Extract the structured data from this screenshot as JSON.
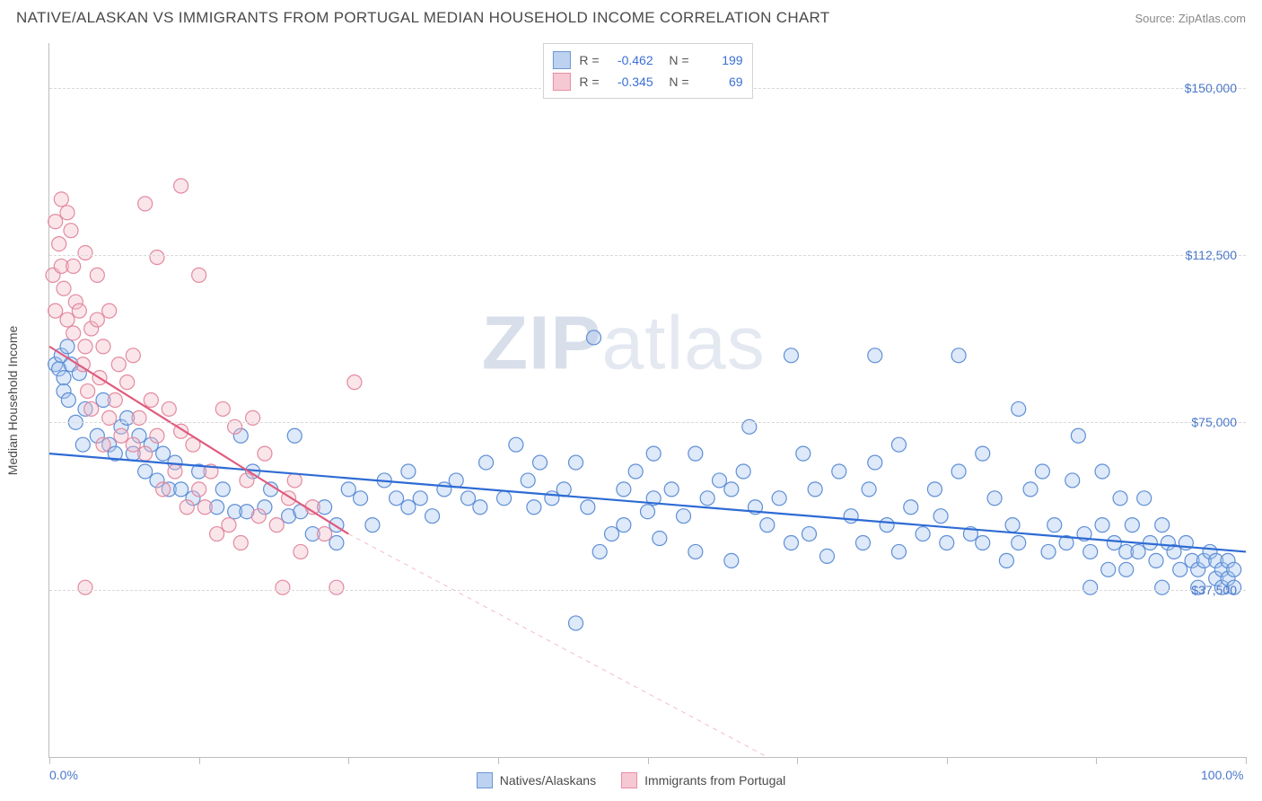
{
  "title": "NATIVE/ALASKAN VS IMMIGRANTS FROM PORTUGAL MEDIAN HOUSEHOLD INCOME CORRELATION CHART",
  "source_label": "Source: ZipAtlas.com",
  "watermark": {
    "bold": "ZIP",
    "light": "atlas"
  },
  "y_axis_label": "Median Household Income",
  "chart": {
    "type": "scatter-with-trendlines",
    "background_color": "#ffffff",
    "grid_color": "#d8d8d8",
    "axis_color": "#bdbdbd",
    "tick_label_color": "#4a78c9",
    "xlim": [
      0,
      100
    ],
    "ylim": [
      0,
      160000
    ],
    "x_ticks": [
      0,
      12.5,
      25,
      37.5,
      50,
      62.5,
      75,
      87.5,
      100
    ],
    "x_tick_labels_shown": {
      "0": "0.0%",
      "100": "100.0%"
    },
    "y_gridlines": [
      37500,
      75000,
      112500,
      150000
    ],
    "y_tick_labels": {
      "37500": "$37,500",
      "75000": "$75,000",
      "112500": "$112,500",
      "150000": "$150,000"
    },
    "point_radius": 8,
    "point_stroke_width": 1.2,
    "point_fill_opacity": 0.38
  },
  "series": [
    {
      "key": "natives",
      "label": "Natives/Alaskans",
      "fill": "#a9c6ee",
      "stroke": "#5e8fd6",
      "swatch_fill": "#bcd2f0",
      "swatch_border": "#6b97d6",
      "R": "-0.462",
      "N": "199",
      "trend": {
        "x1": 0,
        "y1": 68000,
        "x2": 100,
        "y2": 46000,
        "color": "#2e6bd4",
        "width": 2.2,
        "dash": ""
      },
      "points": [
        [
          0.5,
          88000
        ],
        [
          0.8,
          87000
        ],
        [
          1.0,
          90000
        ],
        [
          1.2,
          85000
        ],
        [
          1.2,
          82000
        ],
        [
          1.5,
          92000
        ],
        [
          1.6,
          80000
        ],
        [
          1.8,
          88000
        ],
        [
          2.2,
          75000
        ],
        [
          2.5,
          86000
        ],
        [
          2.8,
          70000
        ],
        [
          3.0,
          78000
        ],
        [
          4.0,
          72000
        ],
        [
          4.5,
          80000
        ],
        [
          5.0,
          70000
        ],
        [
          5.5,
          68000
        ],
        [
          6.0,
          74000
        ],
        [
          6.5,
          76000
        ],
        [
          7.0,
          68000
        ],
        [
          7.5,
          72000
        ],
        [
          8.0,
          64000
        ],
        [
          8.5,
          70000
        ],
        [
          9.0,
          62000
        ],
        [
          9.5,
          68000
        ],
        [
          10.0,
          60000
        ],
        [
          10.5,
          66000
        ],
        [
          11.0,
          60000
        ],
        [
          12.0,
          58000
        ],
        [
          12.5,
          64000
        ],
        [
          14.0,
          56000
        ],
        [
          14.5,
          60000
        ],
        [
          15.5,
          55000
        ],
        [
          16.0,
          72000
        ],
        [
          16.5,
          55000
        ],
        [
          17.0,
          64000
        ],
        [
          18.0,
          56000
        ],
        [
          18.5,
          60000
        ],
        [
          20.0,
          54000
        ],
        [
          20.5,
          72000
        ],
        [
          21.0,
          55000
        ],
        [
          22.0,
          50000
        ],
        [
          23.0,
          56000
        ],
        [
          24.0,
          52000
        ],
        [
          24.0,
          48000
        ],
        [
          25.0,
          60000
        ],
        [
          26.0,
          58000
        ],
        [
          27.0,
          52000
        ],
        [
          28.0,
          62000
        ],
        [
          29.0,
          58000
        ],
        [
          30.0,
          56000
        ],
        [
          30.0,
          64000
        ],
        [
          31.0,
          58000
        ],
        [
          32.0,
          54000
        ],
        [
          33.0,
          60000
        ],
        [
          34.0,
          62000
        ],
        [
          35.0,
          58000
        ],
        [
          36.0,
          56000
        ],
        [
          36.5,
          66000
        ],
        [
          38.0,
          58000
        ],
        [
          39.0,
          70000
        ],
        [
          40.0,
          62000
        ],
        [
          40.5,
          56000
        ],
        [
          41.0,
          66000
        ],
        [
          42.0,
          58000
        ],
        [
          43.0,
          60000
        ],
        [
          44.0,
          30000
        ],
        [
          44.0,
          66000
        ],
        [
          45.0,
          56000
        ],
        [
          45.5,
          94000
        ],
        [
          46.0,
          46000
        ],
        [
          47.0,
          50000
        ],
        [
          48.0,
          52000
        ],
        [
          48.0,
          60000
        ],
        [
          49.0,
          64000
        ],
        [
          50.0,
          55000
        ],
        [
          50.5,
          58000
        ],
        [
          50.5,
          68000
        ],
        [
          51.0,
          49000
        ],
        [
          52.0,
          60000
        ],
        [
          53.0,
          54000
        ],
        [
          54.0,
          46000
        ],
        [
          54.0,
          68000
        ],
        [
          55.0,
          58000
        ],
        [
          56.0,
          62000
        ],
        [
          57.0,
          44000
        ],
        [
          57.0,
          60000
        ],
        [
          58.0,
          64000
        ],
        [
          58.5,
          74000
        ],
        [
          59.0,
          56000
        ],
        [
          60.0,
          52000
        ],
        [
          61.0,
          58000
        ],
        [
          62.0,
          48000
        ],
        [
          62.0,
          90000
        ],
        [
          63.0,
          68000
        ],
        [
          63.5,
          50000
        ],
        [
          64.0,
          60000
        ],
        [
          65.0,
          45000
        ],
        [
          66.0,
          64000
        ],
        [
          67.0,
          54000
        ],
        [
          68.0,
          48000
        ],
        [
          68.5,
          60000
        ],
        [
          69.0,
          90000
        ],
        [
          69.0,
          66000
        ],
        [
          70.0,
          52000
        ],
        [
          71.0,
          46000
        ],
        [
          71.0,
          70000
        ],
        [
          72.0,
          56000
        ],
        [
          73.0,
          50000
        ],
        [
          74.0,
          60000
        ],
        [
          74.5,
          54000
        ],
        [
          75.0,
          48000
        ],
        [
          76.0,
          90000
        ],
        [
          76.0,
          64000
        ],
        [
          77.0,
          50000
        ],
        [
          78.0,
          48000
        ],
        [
          78.0,
          68000
        ],
        [
          79.0,
          58000
        ],
        [
          80.0,
          44000
        ],
        [
          80.5,
          52000
        ],
        [
          81.0,
          78000
        ],
        [
          81.0,
          48000
        ],
        [
          82.0,
          60000
        ],
        [
          83.0,
          64000
        ],
        [
          83.5,
          46000
        ],
        [
          84.0,
          52000
        ],
        [
          85.0,
          48000
        ],
        [
          85.5,
          62000
        ],
        [
          86.0,
          72000
        ],
        [
          86.5,
          50000
        ],
        [
          87.0,
          38000
        ],
        [
          87.0,
          46000
        ],
        [
          88.0,
          64000
        ],
        [
          88.0,
          52000
        ],
        [
          88.5,
          42000
        ],
        [
          89.0,
          48000
        ],
        [
          89.5,
          58000
        ],
        [
          90.0,
          46000
        ],
        [
          90.0,
          42000
        ],
        [
          90.5,
          52000
        ],
        [
          91.0,
          46000
        ],
        [
          91.5,
          58000
        ],
        [
          92.0,
          48000
        ],
        [
          92.5,
          44000
        ],
        [
          93.0,
          52000
        ],
        [
          93.0,
          38000
        ],
        [
          93.5,
          48000
        ],
        [
          94.0,
          46000
        ],
        [
          94.5,
          42000
        ],
        [
          95.0,
          48000
        ],
        [
          95.5,
          44000
        ],
        [
          96.0,
          42000
        ],
        [
          96.0,
          38000
        ],
        [
          96.5,
          44000
        ],
        [
          97.0,
          46000
        ],
        [
          97.5,
          40000
        ],
        [
          97.5,
          44000
        ],
        [
          98.0,
          42000
        ],
        [
          98.0,
          38000
        ],
        [
          98.5,
          44000
        ],
        [
          98.5,
          40000
        ],
        [
          99.0,
          42000
        ],
        [
          99.0,
          38000
        ]
      ]
    },
    {
      "key": "portugal",
      "label": "Immigrants from Portugal",
      "fill": "#f3bcc8",
      "stroke": "#e389a0",
      "swatch_fill": "#f6c8d3",
      "swatch_border": "#e78ea4",
      "R": "-0.345",
      "N": "69",
      "trend": {
        "x1": 0,
        "y1": 92000,
        "x2": 25,
        "y2": 50000,
        "color": "#e15b7e",
        "width": 2.2,
        "dash": "",
        "ext_x2": 60,
        "ext_y2": 0,
        "ext_dash": "5 5",
        "ext_color": "#f3bcc8"
      },
      "points": [
        [
          0.3,
          108000
        ],
        [
          0.5,
          120000
        ],
        [
          0.5,
          100000
        ],
        [
          0.8,
          115000
        ],
        [
          1.0,
          125000
        ],
        [
          1.0,
          110000
        ],
        [
          1.2,
          105000
        ],
        [
          1.5,
          98000
        ],
        [
          1.5,
          122000
        ],
        [
          1.8,
          118000
        ],
        [
          2.0,
          95000
        ],
        [
          2.0,
          110000
        ],
        [
          2.2,
          102000
        ],
        [
          2.5,
          100000
        ],
        [
          2.8,
          88000
        ],
        [
          3.0,
          113000
        ],
        [
          3.0,
          92000
        ],
        [
          3.2,
          82000
        ],
        [
          3.5,
          96000
        ],
        [
          3.5,
          78000
        ],
        [
          4.0,
          98000
        ],
        [
          4.0,
          108000
        ],
        [
          4.2,
          85000
        ],
        [
          4.5,
          70000
        ],
        [
          4.5,
          92000
        ],
        [
          5.0,
          76000
        ],
        [
          5.0,
          100000
        ],
        [
          5.5,
          80000
        ],
        [
          5.8,
          88000
        ],
        [
          6.0,
          72000
        ],
        [
          6.5,
          84000
        ],
        [
          7.0,
          70000
        ],
        [
          7.0,
          90000
        ],
        [
          7.5,
          76000
        ],
        [
          8.0,
          68000
        ],
        [
          8.0,
          124000
        ],
        [
          8.5,
          80000
        ],
        [
          9.0,
          72000
        ],
        [
          9.0,
          112000
        ],
        [
          9.5,
          60000
        ],
        [
          10.0,
          78000
        ],
        [
          10.5,
          64000
        ],
        [
          11.0,
          128000
        ],
        [
          11.0,
          73000
        ],
        [
          11.5,
          56000
        ],
        [
          12.0,
          70000
        ],
        [
          12.5,
          60000
        ],
        [
          12.5,
          108000
        ],
        [
          13.0,
          56000
        ],
        [
          13.5,
          64000
        ],
        [
          14.0,
          50000
        ],
        [
          14.5,
          78000
        ],
        [
          15.0,
          52000
        ],
        [
          15.5,
          74000
        ],
        [
          16.0,
          48000
        ],
        [
          16.5,
          62000
        ],
        [
          17.0,
          76000
        ],
        [
          17.5,
          54000
        ],
        [
          18.0,
          68000
        ],
        [
          19.0,
          52000
        ],
        [
          19.5,
          38000
        ],
        [
          20.0,
          58000
        ],
        [
          20.5,
          62000
        ],
        [
          21.0,
          46000
        ],
        [
          22.0,
          56000
        ],
        [
          23.0,
          50000
        ],
        [
          24.0,
          38000
        ],
        [
          25.5,
          84000
        ],
        [
          3.0,
          38000
        ]
      ]
    }
  ],
  "bottom_legend": [
    {
      "series": "natives"
    },
    {
      "series": "portugal"
    }
  ]
}
